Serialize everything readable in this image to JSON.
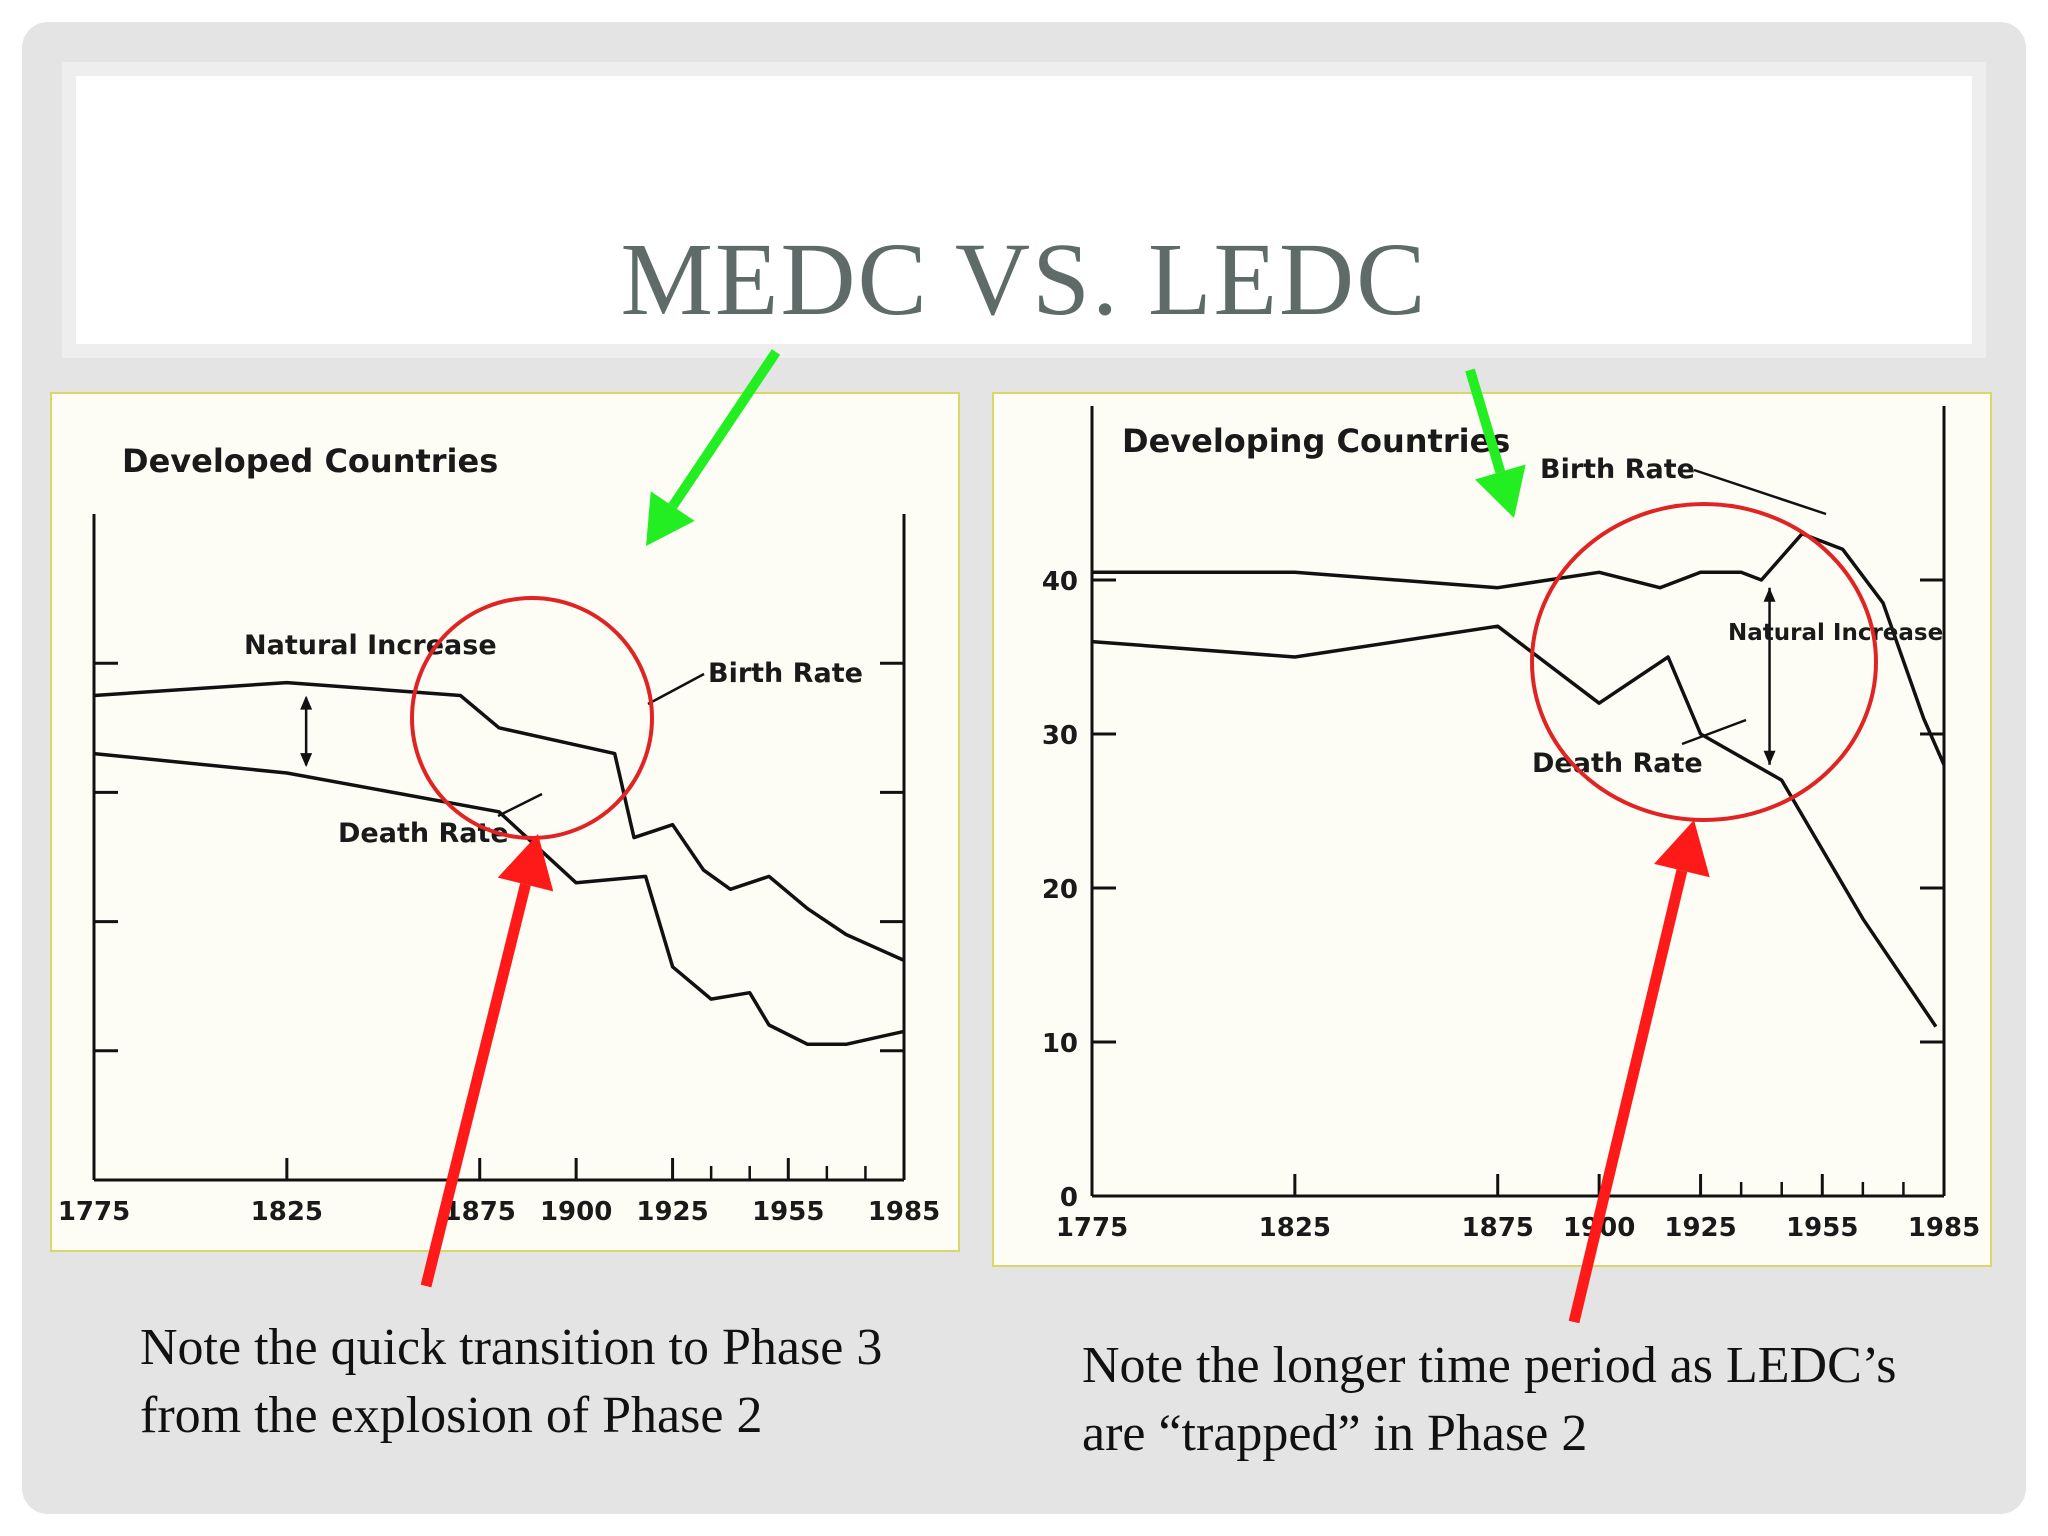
{
  "slide": {
    "title": "MEDC VS. LEDC",
    "caption_left": "Note the quick transition to Phase 3 from the explosion of Phase 2",
    "caption_right": "Note the longer time period as LEDC’s are “trapped” in Phase 2"
  },
  "colors": {
    "highlight_circle": "#e02424",
    "arrow_red": "#ff1a1a",
    "arrow_green": "#22ee22",
    "chart_line": "#111111"
  },
  "chart_data": [
    {
      "type": "line",
      "title": "Developed Countries",
      "x_ticks": [
        "1775",
        "1825",
        "1875",
        "1900",
        "1925",
        "1955",
        "1985"
      ],
      "xlim": [
        1775,
        1985
      ],
      "ylim": [
        0,
        50
      ],
      "series": [
        {
          "name": "Birth Rate",
          "x": [
            1775,
            1825,
            1870,
            1880,
            1910,
            1915,
            1925,
            1933,
            1940,
            1950,
            1960,
            1970,
            1985
          ],
          "values": [
            37.5,
            38.5,
            37.5,
            35,
            33,
            26.5,
            27.5,
            24,
            22.5,
            23.5,
            21,
            19,
            17
          ]
        },
        {
          "name": "Death Rate",
          "x": [
            1775,
            1825,
            1880,
            1900,
            1918,
            1925,
            1935,
            1945,
            1950,
            1960,
            1970,
            1985
          ],
          "values": [
            33,
            31.5,
            28.5,
            23,
            23.5,
            16.5,
            14,
            14.5,
            12,
            10.5,
            10.5,
            11.5
          ]
        }
      ],
      "annotations": [
        "Natural Increase",
        "Birth Rate",
        "Death Rate"
      ]
    },
    {
      "type": "line",
      "title": "Developing Countries",
      "x_ticks": [
        "1775",
        "1825",
        "1875",
        "1900",
        "1925",
        "1955",
        "1985"
      ],
      "y_ticks": [
        "0",
        "10",
        "20",
        "30",
        "40"
      ],
      "xlim": [
        1775,
        1985
      ],
      "ylim": [
        0,
        50
      ],
      "series": [
        {
          "name": "Birth Rate",
          "x": [
            1775,
            1825,
            1875,
            1900,
            1915,
            1925,
            1935,
            1940,
            1950,
            1960,
            1970,
            1980,
            1985
          ],
          "values": [
            40.5,
            40.5,
            39.5,
            40.5,
            39.5,
            40.5,
            40.5,
            40,
            43,
            42,
            38.5,
            31,
            28
          ]
        },
        {
          "name": "Death Rate",
          "x": [
            1775,
            1825,
            1875,
            1900,
            1917,
            1925,
            1945,
            1965,
            1983
          ],
          "values": [
            36,
            35,
            37,
            32,
            35,
            30,
            27,
            18,
            11
          ]
        }
      ],
      "annotations": [
        "Birth Rate",
        "Natural Increase",
        "Death Rate"
      ]
    }
  ]
}
